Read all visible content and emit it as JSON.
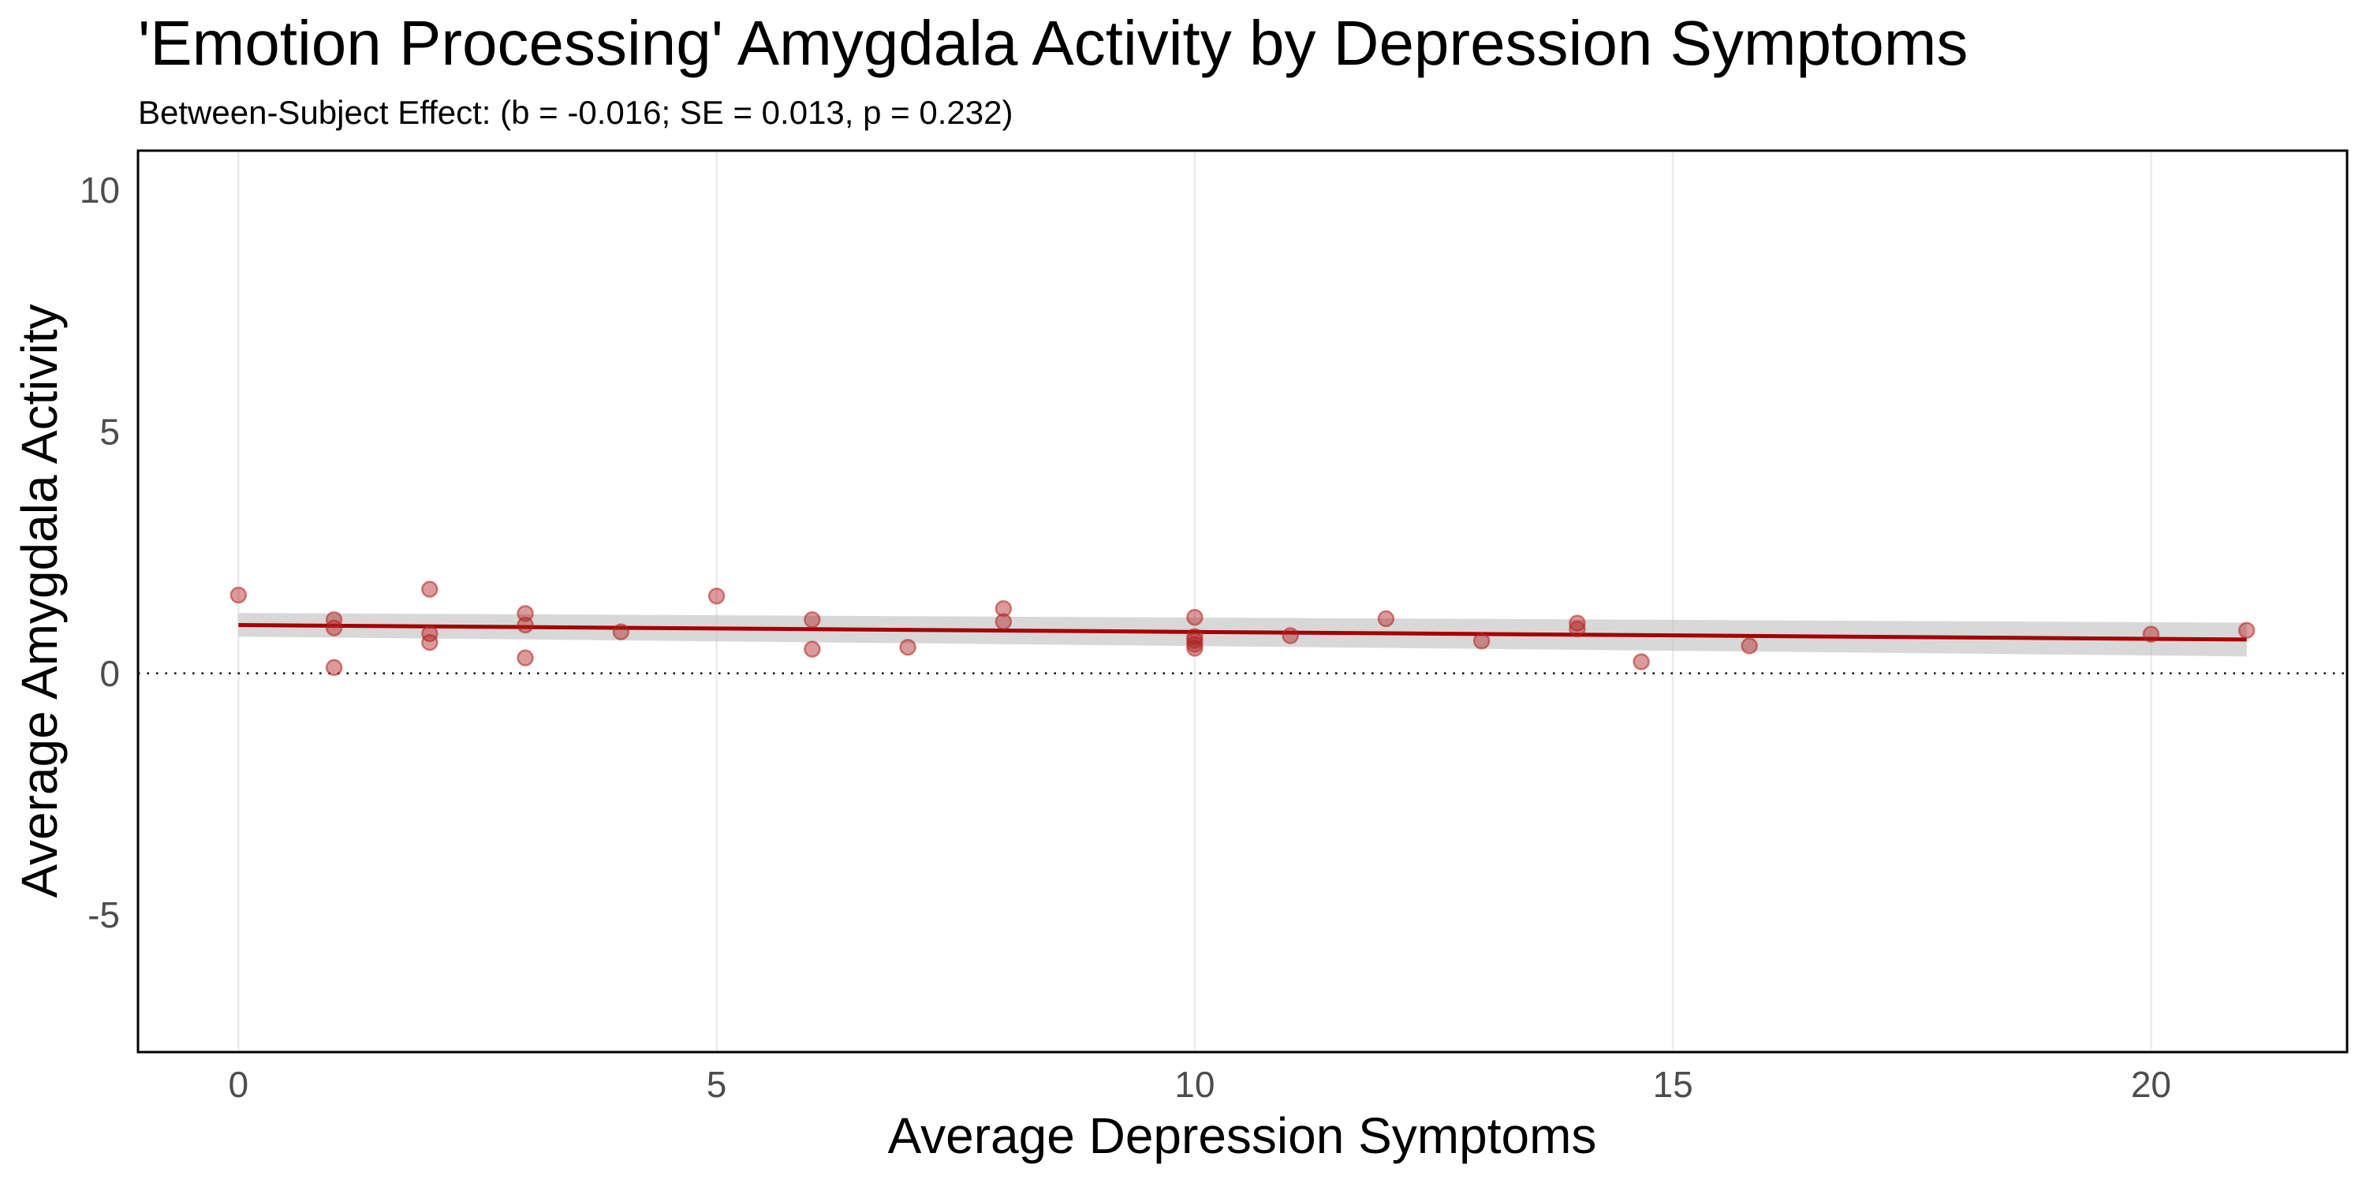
{
  "chart_data": {
    "type": "scatter",
    "title": "'Emotion Processing' Amygdala Activity by Depression Symptoms",
    "subtitle": "Between-Subject Effect: (b = -0.016; SE = 0.013, p = 0.232)",
    "xlabel": "Average Depression Symptoms",
    "ylabel": "Average Amygdala Activity",
    "xlim": [
      -1.05,
      22.05
    ],
    "ylim": [
      -7.84,
      10.82
    ],
    "x_ticks": [
      0,
      5,
      10,
      15,
      20
    ],
    "x_tick_labels": [
      "0",
      "5",
      "10",
      "15",
      "20"
    ],
    "y_ticks": [
      -5,
      0,
      5,
      10
    ],
    "y_tick_labels": [
      "-5",
      "0",
      "5",
      "10"
    ],
    "grid": {
      "vertical_major": true,
      "horizontal": false
    },
    "reference_line": {
      "y": 0,
      "style": "dotted",
      "color": "#000000"
    },
    "colors": {
      "point": "#B22222",
      "fit_line": "#A50000",
      "confidence_band": "#BEBEBE",
      "grid": "#EBEBEB",
      "panel_border": "#000000"
    },
    "points": [
      {
        "x": 0,
        "y": 1.62
      },
      {
        "x": 1,
        "y": 1.11
      },
      {
        "x": 1,
        "y": 0.94
      },
      {
        "x": 1,
        "y": 0.12
      },
      {
        "x": 2,
        "y": 1.74
      },
      {
        "x": 2,
        "y": 0.82
      },
      {
        "x": 2,
        "y": 0.64
      },
      {
        "x": 3,
        "y": 1.24
      },
      {
        "x": 3,
        "y": 1.0
      },
      {
        "x": 3,
        "y": 0.32
      },
      {
        "x": 4,
        "y": 0.86
      },
      {
        "x": 5,
        "y": 1.6
      },
      {
        "x": 6,
        "y": 1.11
      },
      {
        "x": 6,
        "y": 0.5
      },
      {
        "x": 7,
        "y": 0.54
      },
      {
        "x": 8,
        "y": 1.34
      },
      {
        "x": 8,
        "y": 1.07
      },
      {
        "x": 10,
        "y": 1.16
      },
      {
        "x": 10,
        "y": 0.76
      },
      {
        "x": 10,
        "y": 0.68
      },
      {
        "x": 10,
        "y": 0.6
      },
      {
        "x": 10,
        "y": 0.52
      },
      {
        "x": 11,
        "y": 0.78
      },
      {
        "x": 12,
        "y": 1.13
      },
      {
        "x": 13,
        "y": 0.67
      },
      {
        "x": 14,
        "y": 1.04
      },
      {
        "x": 14,
        "y": 0.92
      },
      {
        "x": 14.67,
        "y": 0.24
      },
      {
        "x": 15.8,
        "y": 0.57
      },
      {
        "x": 20,
        "y": 0.81
      },
      {
        "x": 21,
        "y": 0.89
      }
    ],
    "fit": {
      "x": [
        0,
        21
      ],
      "y": [
        1.0,
        0.7
      ],
      "ci_lower": [
        0.76,
        0.35
      ],
      "ci_upper": [
        1.25,
        1.05
      ]
    }
  }
}
